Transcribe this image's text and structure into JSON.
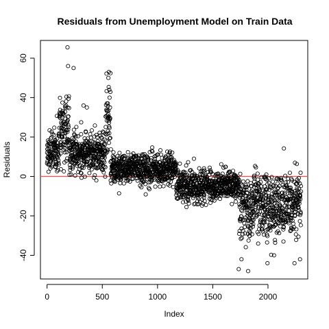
{
  "chart_data": {
    "type": "scatter",
    "title": "Residuals from Unemployment Model on Train Data",
    "xlabel": "Index",
    "ylabel": "Residuals",
    "xlim": [
      -60,
      2360
    ],
    "ylim": [
      -52,
      69
    ],
    "x_ticks": [
      0,
      500,
      1000,
      1500,
      2000
    ],
    "y_ticks": [
      -40,
      -20,
      0,
      20,
      40,
      60
    ],
    "reference_line": {
      "y": 0,
      "color": "#e8565a"
    },
    "grid": false,
    "legend": "none",
    "marker": "open circle",
    "point_count": 2300,
    "segments": [
      {
        "x_start": 0,
        "x_end": 110,
        "median": 12,
        "spread": 5
      },
      {
        "x_start": 110,
        "x_end": 200,
        "median": 26,
        "spread": 9
      },
      {
        "x_start": 200,
        "x_end": 530,
        "median": 12,
        "spread": 5
      },
      {
        "x_start": 530,
        "x_end": 575,
        "median": 30,
        "spread": 12
      },
      {
        "x_start": 575,
        "x_end": 1170,
        "median": 4,
        "spread": 4
      },
      {
        "x_start": 1170,
        "x_end": 1740,
        "median": -5,
        "spread": 4
      },
      {
        "x_start": 1740,
        "x_end": 2300,
        "median": -15,
        "spread": 8
      }
    ],
    "outliers": [
      {
        "x": 185,
        "y": 65.5
      },
      {
        "x": 190,
        "y": 56
      },
      {
        "x": 240,
        "y": 55
      },
      {
        "x": 560,
        "y": 53
      },
      {
        "x": 555,
        "y": 50
      },
      {
        "x": 330,
        "y": 36
      },
      {
        "x": 360,
        "y": 35
      },
      {
        "x": 1330,
        "y": 9
      },
      {
        "x": 1985,
        "y": 1
      },
      {
        "x": 2010,
        "y": -1
      },
      {
        "x": 1735,
        "y": -47
      },
      {
        "x": 1820,
        "y": -48
      },
      {
        "x": 1760,
        "y": -42
      },
      {
        "x": 1995,
        "y": -44
      },
      {
        "x": 2055,
        "y": -40
      },
      {
        "x": 2240,
        "y": -44
      },
      {
        "x": 2290,
        "y": -42
      }
    ]
  }
}
